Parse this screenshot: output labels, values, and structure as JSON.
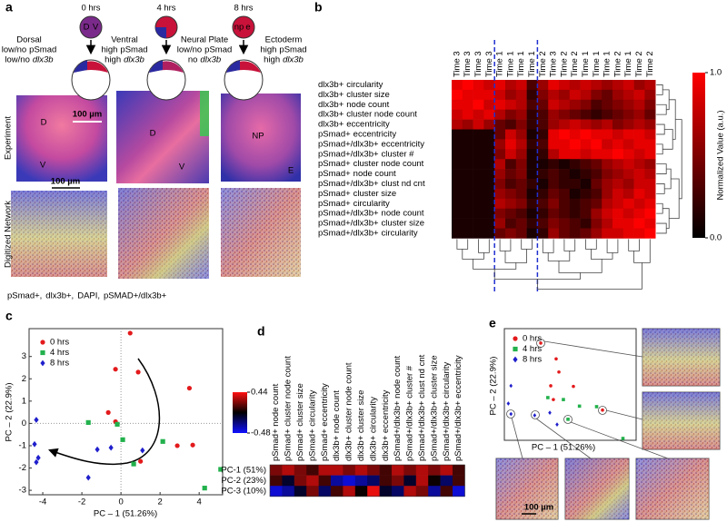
{
  "panel_a": {
    "label": "a",
    "times": [
      "0 hrs",
      "4 hrs",
      "8 hrs"
    ],
    "embryo_letters": [
      {
        "left": "D",
        "right": "V"
      },
      {
        "left": "np",
        "right": "e"
      }
    ],
    "descriptions": [
      {
        "title": "Dorsal",
        "lines": [
          [
            {
              "text": "low/no"
            },
            {
              "text": "pSmad",
              "color": "#22b14c"
            }
          ],
          [
            {
              "text": "low/no"
            },
            {
              "text": "dlx3b",
              "color": "#e31a1c",
              "style": "italic"
            }
          ]
        ]
      },
      {
        "title": "Ventral",
        "lines": [
          [
            {
              "text": "high"
            },
            {
              "text": "pSmad",
              "color": "#22b14c"
            }
          ],
          [
            {
              "text": "high"
            },
            {
              "text": "dlx3b",
              "color": "#e31a1c",
              "style": "italic"
            }
          ]
        ]
      },
      {
        "title": "Neural Plate",
        "lines": [
          [
            {
              "text": "low/no"
            },
            {
              "text": "pSmad",
              "color": "#22b14c"
            }
          ],
          [
            {
              "text": "no"
            },
            {
              "text": "dlx3b",
              "color": "#e31a1c",
              "style": "italic"
            }
          ]
        ]
      },
      {
        "title": "Ectoderm",
        "lines": [
          [
            {
              "text": "high"
            },
            {
              "text": "pSmad",
              "color": "#22b14c"
            }
          ],
          [
            {
              "text": "high"
            },
            {
              "text": "dlx3b",
              "color": "#e31a1c",
              "style": "italic"
            }
          ]
        ]
      }
    ],
    "experiment_scale": "100 µm",
    "experiment_labels": [
      [
        "D",
        "V"
      ],
      [
        "D",
        "V"
      ],
      [
        "NP",
        "E"
      ]
    ],
    "network_scale": "100 µm",
    "row_labels": [
      "Experiment",
      "Digitized Network"
    ],
    "legend": [
      {
        "text": "pSmad+,",
        "color": "#22b14c"
      },
      {
        "text": "dlx3b+,",
        "color": "#e31a1c"
      },
      {
        "text": "DAPI,",
        "color": "#2b2bd9"
      },
      {
        "text": "pSMAD+/dlx3b+",
        "color": "#e0a820"
      }
    ]
  },
  "panel_b": {
    "label": "b",
    "heatmap": {
      "columns": [
        "Time 3",
        "Time 3",
        "Time 3",
        "Time 3",
        "Time 1",
        "Time 1",
        "Time 1",
        "Time 1",
        "Time 2",
        "Time 3",
        "Time 2",
        "Time 2",
        "Time 1",
        "Time 1",
        "Time 1",
        "Time 2",
        "Time 1",
        "Time 2",
        "Time 2"
      ],
      "rows": [
        {
          "marker": "dlx3b+",
          "feature": "circularity",
          "color": "#e31a1c"
        },
        {
          "marker": "dlx3b+",
          "feature": "cluster size",
          "color": "#e31a1c"
        },
        {
          "marker": "dlx3b+",
          "feature": "node count",
          "color": "#e31a1c"
        },
        {
          "marker": "dlx3b+",
          "feature": "cluster node count",
          "color": "#e31a1c"
        },
        {
          "marker": "dlx3b+",
          "feature": "eccentricity",
          "color": "#e31a1c"
        },
        {
          "marker": "pSmad+",
          "feature": "eccentricity",
          "color": "#22b14c"
        },
        {
          "marker": "pSmad+/dlx3b+",
          "feature": "eccentricity",
          "color": "#e0a820"
        },
        {
          "marker": "pSmad+/dlx3b+",
          "feature": "cluster #",
          "color": "#e0a820"
        },
        {
          "marker": "pSmad+",
          "feature": "cluster node count",
          "color": "#22b14c"
        },
        {
          "marker": "pSmad+",
          "feature": "node count",
          "color": "#22b14c"
        },
        {
          "marker": "pSmad+/dlx3b+",
          "feature": "clust nd cnt",
          "color": "#e0a820"
        },
        {
          "marker": "pSmad+",
          "feature": "cluster size",
          "color": "#22b14c"
        },
        {
          "marker": "pSmad+",
          "feature": "circularity",
          "color": "#22b14c"
        },
        {
          "marker": "pSmad+/dlx3b+",
          "feature": "node count",
          "color": "#e0a820"
        },
        {
          "marker": "pSmad+/dlx3b+",
          "feature": "cluster size",
          "color": "#e0a820"
        },
        {
          "marker": "pSmad+/dlx3b+",
          "feature": "circularity",
          "color": "#e0a820"
        }
      ],
      "values": [
        [
          0.9,
          1,
          0.9,
          0.8,
          0.9,
          0.7,
          0.8,
          0.3,
          0.6,
          0.9,
          0.8,
          0.7,
          0.8,
          0.7,
          0.6,
          0.7,
          0.8,
          0.6,
          0.7
        ],
        [
          1,
          0.9,
          0.9,
          0.9,
          0.8,
          0.6,
          0.7,
          0.2,
          0.5,
          0.7,
          0.6,
          0.8,
          0.7,
          0.5,
          0.4,
          0.6,
          0.7,
          0.8,
          0.6
        ],
        [
          0.9,
          0.9,
          1,
          0.8,
          0.9,
          0.8,
          0.7,
          0.3,
          0.4,
          0.8,
          0.7,
          0.6,
          0.5,
          0.3,
          0.4,
          0.5,
          0.6,
          0.7,
          0.5
        ],
        [
          0.8,
          0.9,
          0.8,
          0.9,
          0.7,
          0.5,
          0.6,
          0.2,
          0.3,
          0.6,
          0.5,
          0.4,
          0.3,
          0.2,
          0.3,
          0.4,
          0.5,
          0.6,
          0.4
        ],
        [
          0.7,
          0.6,
          0.8,
          0.6,
          0.4,
          0.3,
          0.5,
          0.2,
          0.3,
          0.6,
          0.7,
          0.8,
          0.7,
          0.6,
          0.7,
          0.5,
          0.6,
          0.7,
          0.6
        ],
        [
          0.1,
          0.1,
          0.1,
          0.1,
          0.4,
          0.8,
          0.6,
          0.1,
          0.2,
          0.9,
          1,
          0.9,
          1,
          0.9,
          0.9,
          0.8,
          0.9,
          0.9,
          0.8
        ],
        [
          0.1,
          0.1,
          0.1,
          0.1,
          0.6,
          0.9,
          0.7,
          0.2,
          0.3,
          0.9,
          0.9,
          1,
          0.9,
          1,
          0.8,
          0.9,
          0.8,
          0.9,
          0.9
        ],
        [
          0.1,
          0.1,
          0.1,
          0.1,
          0.5,
          0.8,
          0.6,
          0.1,
          0.2,
          0.7,
          0.9,
          0.9,
          0.8,
          0.9,
          0.9,
          1,
          0.9,
          0.8,
          0.9
        ],
        [
          0.1,
          0.1,
          0.1,
          0.1,
          0.7,
          0.3,
          0.5,
          0.1,
          0.1,
          0.2,
          0.1,
          0.2,
          0.3,
          0.4,
          0.6,
          0.7,
          0.8,
          0.7,
          0.6
        ],
        [
          0.1,
          0.1,
          0.1,
          0.1,
          0.6,
          0.4,
          0.5,
          0.1,
          0.2,
          0.3,
          0.2,
          0.1,
          0.2,
          0.3,
          0.5,
          0.6,
          0.7,
          0.8,
          0.7
        ],
        [
          0.1,
          0.1,
          0.1,
          0.1,
          0.5,
          0.3,
          0.4,
          0.2,
          0.1,
          0.3,
          0.2,
          0.2,
          0.1,
          0.4,
          0.6,
          0.7,
          0.6,
          0.8,
          0.8
        ],
        [
          0.1,
          0.1,
          0.1,
          0.1,
          0.6,
          0.5,
          0.4,
          0.1,
          0.2,
          0.4,
          0.3,
          0.1,
          0.2,
          0.3,
          0.6,
          0.8,
          0.7,
          0.9,
          0.8
        ],
        [
          0.1,
          0.1,
          0.1,
          0.1,
          0.7,
          0.6,
          0.5,
          0.2,
          0.3,
          0.5,
          0.3,
          0.2,
          0.3,
          0.4,
          0.7,
          0.8,
          0.9,
          0.8,
          0.9
        ],
        [
          0.1,
          0.1,
          0.1,
          0.1,
          0.5,
          0.4,
          0.3,
          0.1,
          0.2,
          0.4,
          0.3,
          0.2,
          0.3,
          0.6,
          0.8,
          0.9,
          0.8,
          0.9,
          1
        ],
        [
          0.1,
          0.1,
          0.1,
          0.1,
          0.6,
          0.3,
          0.4,
          0.2,
          0.3,
          0.5,
          0.4,
          0.3,
          0.2,
          0.5,
          0.7,
          0.9,
          0.9,
          1,
          0.9
        ],
        [
          0.1,
          0.1,
          0.1,
          0.1,
          0.4,
          0.5,
          0.4,
          0.1,
          0.2,
          0.6,
          0.4,
          0.3,
          0.4,
          0.6,
          0.8,
          0.8,
          0.9,
          0.9,
          1
        ]
      ],
      "clim": [
        0,
        1
      ],
      "colors": [
        "#000000",
        "#ff0000"
      ],
      "colorbar_ticks": [
        {
          "value": 1,
          "label": "1.0"
        },
        {
          "value": 0,
          "label": "0.0"
        }
      ],
      "colorbar_label": "Normalized Value (a.u.)"
    }
  },
  "panel_c": {
    "label": "c",
    "xlabel": "PC – 1 (51.26%)",
    "ylabel": "PC – 2 (22.9%)",
    "xlim": [
      -4.7,
      5.2
    ],
    "ylim": [
      -3.2,
      4.25
    ],
    "xticks": [
      -4,
      -2,
      0,
      2,
      4
    ],
    "yticks": [
      -3,
      -2,
      -1,
      0,
      1,
      2,
      3
    ],
    "zero_lines": true,
    "series": [
      {
        "name": "0 hrs",
        "color": "#e31a1c",
        "marker": "circle",
        "x": [
          0.47,
          -0.28,
          0.88,
          3.5,
          -0.65,
          -0.28,
          2.88,
          3.67,
          1.0
        ],
        "y": [
          4.05,
          2.43,
          2.3,
          1.58,
          0.49,
          0.08,
          -1.0,
          -0.97,
          -1.7
        ]
      },
      {
        "name": "4 hrs",
        "color": "#22b14c",
        "marker": "square",
        "x": [
          -0.19,
          -1.67,
          0.09,
          0.65,
          2.14,
          4.28,
          5.1
        ],
        "y": [
          -0.04,
          0.04,
          -0.73,
          -1.82,
          -0.81,
          -2.9,
          -2.06
        ]
      },
      {
        "name": "8 hrs",
        "color": "#1f1fcc",
        "marker": "diamond",
        "x": [
          -4.33,
          -4.42,
          -4.23,
          -4.33,
          -1.21,
          -0.51,
          -1.67,
          1.1
        ],
        "y": [
          0.16,
          -0.93,
          -1.54,
          -1.74,
          -1.17,
          -1.09,
          -2.43,
          -1.21
        ]
      }
    ]
  },
  "panel_d": {
    "label": "d",
    "columns": [
      {
        "label": "pSmad+ node count",
        "color": "#22b14c"
      },
      {
        "label": "pSmad+ cluster node count",
        "color": "#22b14c"
      },
      {
        "label": "pSmad+ cluster size",
        "color": "#22b14c"
      },
      {
        "label": "pSmad+ circularity",
        "color": "#22b14c"
      },
      {
        "label": "pSmad+ eccentricity",
        "color": "#22b14c"
      },
      {
        "label": "dlx3b+ node count",
        "color": "#e31a1c"
      },
      {
        "label": "dlx3b+ cluster node count",
        "color": "#e31a1c"
      },
      {
        "label": "dlx3b+ cluster size",
        "color": "#e31a1c"
      },
      {
        "label": "dlx3b+ circularity",
        "color": "#e31a1c"
      },
      {
        "label": "dlx3b+ eccentricity",
        "color": "#e31a1c"
      },
      {
        "label": "pSmad+/dlx3b+ node count",
        "color": "#e0a820"
      },
      {
        "label": "pSmad+/dlx3b+ cluster #",
        "color": "#e0a820"
      },
      {
        "label": "pSmad+/dlx3b+ clust nd cnt",
        "color": "#e0a820"
      },
      {
        "label": "pSmad+/dlx3b+ cluster size",
        "color": "#e0a820"
      },
      {
        "label": "pSmad+/dlx3b+ circularity",
        "color": "#e0a820"
      },
      {
        "label": "pSmad+/dlx3b+ eccentricity",
        "color": "#e0a820"
      }
    ],
    "rows": [
      "PC-1 (51%)",
      "PC-2 (23%)",
      "PC-3 (10%)"
    ],
    "values": [
      [
        0.2,
        0.3,
        0.2,
        0.1,
        0.3,
        0.3,
        0.2,
        0.3,
        0.2,
        0.1,
        0.3,
        0.2,
        0.3,
        0.2,
        0.3,
        0.1
      ],
      [
        0.1,
        -0.1,
        0.2,
        0.3,
        0.1,
        -0.3,
        -0.4,
        -0.3,
        -0.2,
        0.1,
        0.2,
        -0.1,
        0.3,
        0,
        -0.2,
        0.1
      ],
      [
        -0.4,
        -0.3,
        -0.1,
        0.2,
        -0.2,
        0.1,
        0.3,
        0,
        0.4,
        -0.1,
        -0.2,
        0.3,
        0.2,
        -0.3,
        0.1,
        -0.4
      ]
    ],
    "clim": [
      -0.48,
      0.44
    ],
    "colors": [
      "#1010ff",
      "#000000",
      "#ff1010"
    ],
    "colorbar_ticks": [
      0.44,
      -0.48
    ]
  },
  "panel_e": {
    "label": "e",
    "xlabel": "PC – 1 (51.26%)",
    "ylabel": "PC – 2 (22.9%)",
    "xlim": [
      -4.5,
      5.5
    ],
    "ylim": [
      -3.2,
      5.3
    ],
    "scale": "100 µm",
    "series": [
      {
        "name": "0 hrs",
        "color": "#e31a1c",
        "marker": "circle",
        "x": [
          -1.74,
          -0.57,
          -0.36,
          -0.98,
          -0.78,
          0.74,
          2.95
        ],
        "y": [
          4.2,
          3.0,
          2.0,
          0.95,
          -0.1,
          0.9,
          -0.9
        ]
      },
      {
        "name": "4 hrs",
        "color": "#22b14c",
        "marker": "square",
        "x": [
          -1.2,
          -0.02,
          1.2,
          2.5,
          0.33,
          4.5
        ],
        "y": [
          0.05,
          -0.1,
          -0.6,
          -0.64,
          -1.6,
          -3.06
        ]
      },
      {
        "name": "8 hrs",
        "color": "#1f1fcc",
        "marker": "diamond",
        "x": [
          -4.0,
          -4.2,
          -4.0,
          -2.2,
          -1.05,
          -0.5
        ],
        "y": [
          0.95,
          -0.4,
          -1.2,
          -1.3,
          -1.1,
          -2.0
        ]
      }
    ]
  }
}
